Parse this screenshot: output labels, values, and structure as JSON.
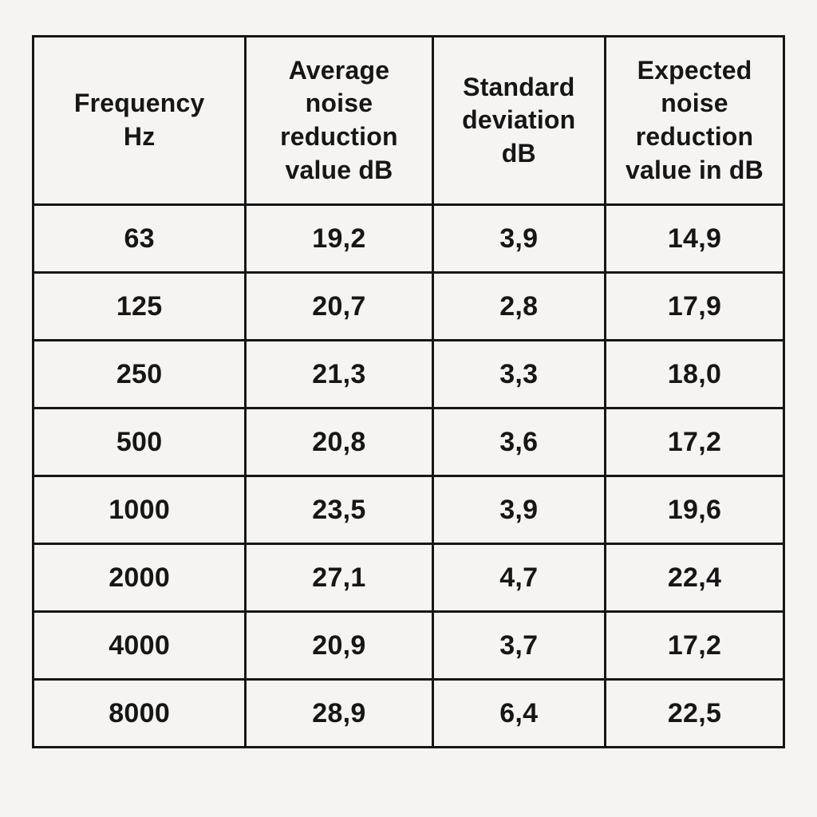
{
  "page": {
    "background_color": "#f5f4f2",
    "text_color": "#161616",
    "grid_border_color": "#161616"
  },
  "table": {
    "headers": [
      {
        "id": "frequency",
        "label": "Frequency\nHz"
      },
      {
        "id": "average-noise-reduction",
        "label": "Average\nnoise\nreduction\nvalue dB"
      },
      {
        "id": "standard-deviation",
        "label": "Standard\ndeviation\ndB"
      },
      {
        "id": "expected-noise-reduction",
        "label": "Expected\nnoise\nreduction\nvalue in dB"
      }
    ],
    "rows": [
      {
        "cells": [
          "63",
          "19,2",
          "3,9",
          "14,9"
        ]
      },
      {
        "cells": [
          "125",
          "20,7",
          "2,8",
          "17,9"
        ]
      },
      {
        "cells": [
          "250",
          "21,3",
          "3,3",
          "18,0"
        ]
      },
      {
        "cells": [
          "500",
          "20,8",
          "3,6",
          "17,2"
        ]
      },
      {
        "cells": [
          "1000",
          "23,5",
          "3,9",
          "19,6"
        ]
      },
      {
        "cells": [
          "2000",
          "27,1",
          "4,7",
          "22,4"
        ]
      },
      {
        "cells": [
          "4000",
          "20,9",
          "3,7",
          "17,2"
        ]
      },
      {
        "cells": [
          "8000",
          "28,9",
          "6,4",
          "22,5"
        ]
      }
    ]
  },
  "chart_data": {
    "type": "table",
    "title": "",
    "columns": [
      "Frequency Hz",
      "Average noise reduction value dB",
      "Standard deviation dB",
      "Expected noise reduction value in dB"
    ],
    "decimal_separator": ",",
    "x": [
      63,
      125,
      250,
      500,
      1000,
      2000,
      4000,
      8000
    ],
    "xlabel": "Frequency Hz",
    "series": [
      {
        "name": "Average noise reduction value dB",
        "values": [
          19.2,
          20.7,
          21.3,
          20.8,
          23.5,
          27.1,
          20.9,
          28.9
        ]
      },
      {
        "name": "Standard deviation dB",
        "values": [
          3.9,
          2.8,
          3.3,
          3.6,
          3.9,
          4.7,
          3.7,
          6.4
        ]
      },
      {
        "name": "Expected noise reduction value in dB",
        "values": [
          14.9,
          17.9,
          18.0,
          17.2,
          19.6,
          22.4,
          17.2,
          22.5
        ]
      }
    ]
  }
}
